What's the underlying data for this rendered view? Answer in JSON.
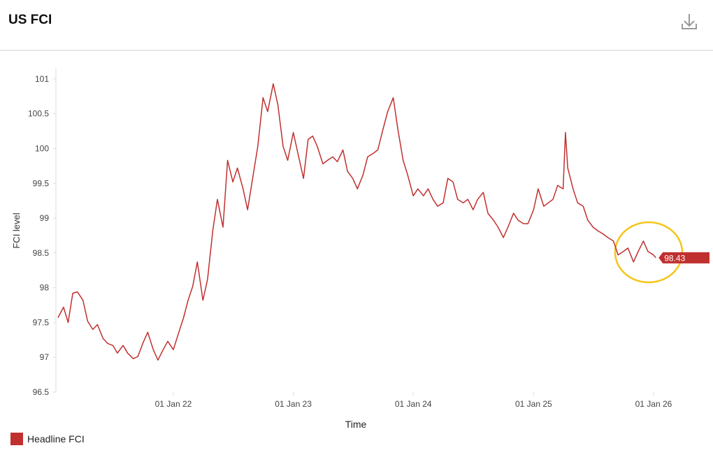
{
  "chart_data": {
    "type": "line",
    "title": "US FCI",
    "y_label": "FCI level",
    "x_label": "Time",
    "xlim": [
      "2021-01-13",
      "2026-02-02"
    ],
    "xticks": [
      {
        "value": "2022-01-01",
        "label": "01 Jan 22"
      },
      {
        "value": "2023-01-01",
        "label": "01 Jan 23"
      },
      {
        "value": "2024-01-01",
        "label": "01 Jan 24"
      },
      {
        "value": "2025-01-01",
        "label": "01 Jan 25"
      },
      {
        "value": "2026-01-01",
        "label": "01 Jan 26"
      }
    ],
    "ylim": [
      96.5,
      101.2
    ],
    "yticks": [
      96.5,
      97,
      97.5,
      98,
      98.5,
      99,
      99.5,
      100,
      100.5,
      101
    ],
    "x": [
      "2021-01-15",
      "2021-02-01",
      "2021-02-15",
      "2021-03-01",
      "2021-03-15",
      "2021-04-01",
      "2021-04-15",
      "2021-05-01",
      "2021-05-15",
      "2021-06-01",
      "2021-06-15",
      "2021-07-01",
      "2021-07-15",
      "2021-08-01",
      "2021-08-15",
      "2021-09-01",
      "2021-09-15",
      "2021-10-01",
      "2021-10-15",
      "2021-11-01",
      "2021-11-15",
      "2021-12-01",
      "2021-12-15",
      "2022-01-01",
      "2022-01-15",
      "2022-02-01",
      "2022-02-15",
      "2022-03-01",
      "2022-03-15",
      "2022-04-01",
      "2022-04-15",
      "2022-05-01",
      "2022-05-15",
      "2022-06-01",
      "2022-06-15",
      "2022-07-01",
      "2022-07-15",
      "2022-08-01",
      "2022-08-15",
      "2022-09-01",
      "2022-09-15",
      "2022-10-01",
      "2022-10-15",
      "2022-11-01",
      "2022-11-15",
      "2022-12-01",
      "2022-12-15",
      "2023-01-01",
      "2023-01-15",
      "2023-02-01",
      "2023-02-15",
      "2023-03-01",
      "2023-03-15",
      "2023-04-01",
      "2023-04-15",
      "2023-05-01",
      "2023-05-15",
      "2023-06-01",
      "2023-06-15",
      "2023-07-01",
      "2023-07-15",
      "2023-08-01",
      "2023-08-15",
      "2023-09-01",
      "2023-09-15",
      "2023-10-01",
      "2023-10-15",
      "2023-11-01",
      "2023-11-15",
      "2023-12-01",
      "2023-12-15",
      "2024-01-01",
      "2024-01-15",
      "2024-02-01",
      "2024-02-15",
      "2024-03-01",
      "2024-03-15",
      "2024-04-01",
      "2024-04-15",
      "2024-05-01",
      "2024-05-15",
      "2024-06-01",
      "2024-06-15",
      "2024-07-01",
      "2024-07-15",
      "2024-08-01",
      "2024-08-15",
      "2024-09-01",
      "2024-09-15",
      "2024-10-01",
      "2024-10-15",
      "2024-11-01",
      "2024-11-15",
      "2024-12-01",
      "2024-12-15",
      "2025-01-01",
      "2025-01-15",
      "2025-02-01",
      "2025-02-15",
      "2025-03-01",
      "2025-03-15",
      "2025-04-01",
      "2025-04-08",
      "2025-04-15",
      "2025-05-01",
      "2025-05-15",
      "2025-06-01",
      "2025-06-15",
      "2025-07-01",
      "2025-07-15",
      "2025-08-01",
      "2025-08-15",
      "2025-09-01",
      "2025-09-15",
      "2025-10-01",
      "2025-10-15",
      "2025-11-01",
      "2025-11-15",
      "2025-12-01",
      "2025-12-15",
      "2026-01-01",
      "2026-01-08"
    ],
    "series": [
      {
        "name": "Headline FCI",
        "color": "#c0302f",
        "values": [
          97.57,
          97.72,
          97.5,
          97.92,
          97.94,
          97.82,
          97.52,
          97.4,
          97.47,
          97.27,
          97.2,
          97.17,
          97.06,
          97.17,
          97.06,
          96.98,
          97.01,
          97.21,
          97.36,
          97.11,
          96.96,
          97.11,
          97.23,
          97.11,
          97.32,
          97.57,
          97.82,
          98.02,
          98.37,
          97.82,
          98.12,
          98.82,
          99.27,
          98.87,
          99.83,
          99.52,
          99.72,
          99.42,
          99.12,
          99.62,
          100.03,
          100.73,
          100.53,
          100.93,
          100.63,
          100.03,
          99.83,
          100.23,
          99.93,
          99.57,
          100.13,
          100.18,
          100.03,
          99.78,
          99.83,
          99.88,
          99.81,
          99.98,
          99.67,
          99.57,
          99.42,
          99.62,
          99.88,
          99.93,
          99.98,
          100.28,
          100.53,
          100.73,
          100.28,
          99.83,
          99.62,
          99.32,
          99.42,
          99.32,
          99.42,
          99.27,
          99.17,
          99.22,
          99.57,
          99.52,
          99.27,
          99.22,
          99.27,
          99.12,
          99.27,
          99.37,
          99.07,
          98.97,
          98.87,
          98.72,
          98.87,
          99.07,
          98.97,
          98.92,
          98.92,
          99.12,
          99.42,
          99.17,
          99.22,
          99.27,
          99.47,
          99.42,
          100.23,
          99.72,
          99.42,
          99.22,
          99.17,
          98.97,
          98.87,
          98.82,
          98.77,
          98.72,
          98.67,
          98.47,
          98.52,
          98.57,
          98.37,
          98.52,
          98.67,
          98.52,
          98.47,
          98.43
        ]
      }
    ]
  }
}
